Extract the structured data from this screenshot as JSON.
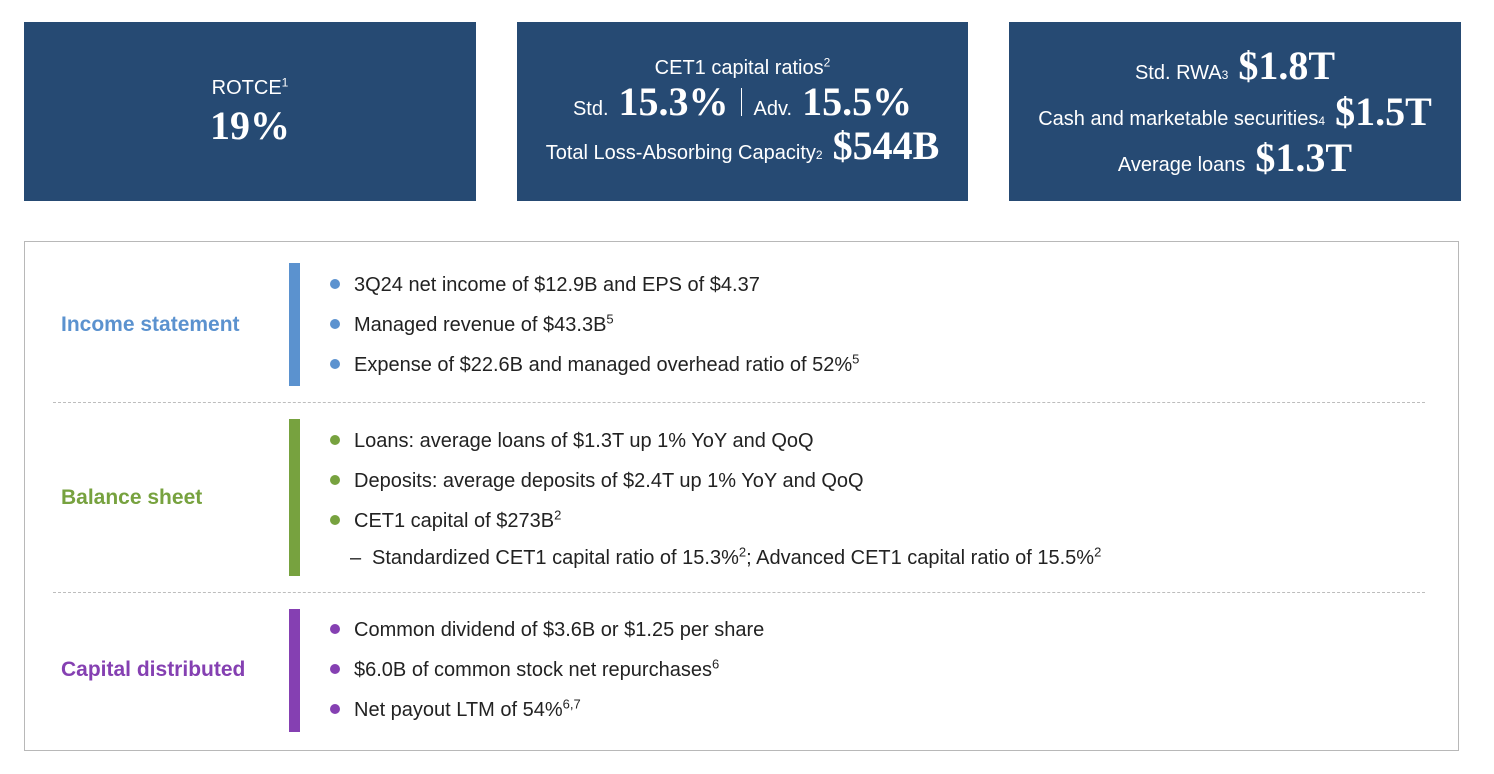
{
  "kpis": {
    "rotce": {
      "label": "ROTCE",
      "sup": "1",
      "value": "19%"
    },
    "capital": {
      "title": "CET1 capital ratios",
      "title_sup": "2",
      "std_label": "Std.",
      "std_value": "15.3%",
      "adv_label": "Adv.",
      "adv_value": "15.5%",
      "tlac_label": "Total Loss-Absorbing Capacity",
      "tlac_sup": "2",
      "tlac_value": "$544B"
    },
    "balance": {
      "rwa_label": "Std. RWA",
      "rwa_sup": "3",
      "rwa_value": "$1.8T",
      "cash_label": "Cash and marketable securities",
      "cash_sup": "4",
      "cash_value": "$1.5T",
      "loans_label": "Average loans",
      "loans_value": "$1.3T"
    }
  },
  "sections": {
    "income": {
      "title": "Income statement",
      "color": "#5b92cf",
      "items": [
        {
          "text": "3Q24 net income of $12.9B and EPS of $4.37",
          "sup": ""
        },
        {
          "text": "Managed revenue of $43.3B",
          "sup": "5"
        },
        {
          "text": "Expense of $22.6B and managed overhead ratio of 52%",
          "sup": "5"
        }
      ]
    },
    "balance": {
      "title": "Balance sheet",
      "color": "#77a23f",
      "items": [
        {
          "text": "Loans: average loans of $1.3T up 1% YoY and QoQ",
          "sup": ""
        },
        {
          "text": "Deposits: average deposits of $2.4T up 1% YoY and QoQ",
          "sup": ""
        },
        {
          "text": "CET1 capital of $273B",
          "sup": "2"
        }
      ],
      "sub_item": {
        "dash": "–",
        "text_a": "Standardized CET1 capital ratio of 15.3%",
        "sup_a": "2",
        "text_b": "; Advanced CET1 capital ratio of 15.5%",
        "sup_b": "2"
      }
    },
    "capital": {
      "title": "Capital distributed",
      "color": "#8540b2",
      "items": [
        {
          "text": "Common dividend of $3.6B or $1.25 per share",
          "sup": ""
        },
        {
          "text": "$6.0B of common stock net repurchases",
          "sup": "6"
        },
        {
          "text": "Net payout LTM of 54%",
          "sup": "6,7"
        }
      ]
    }
  },
  "colors": {
    "kpi_background": "#264a73",
    "panel_border": "#b8b8b8"
  }
}
